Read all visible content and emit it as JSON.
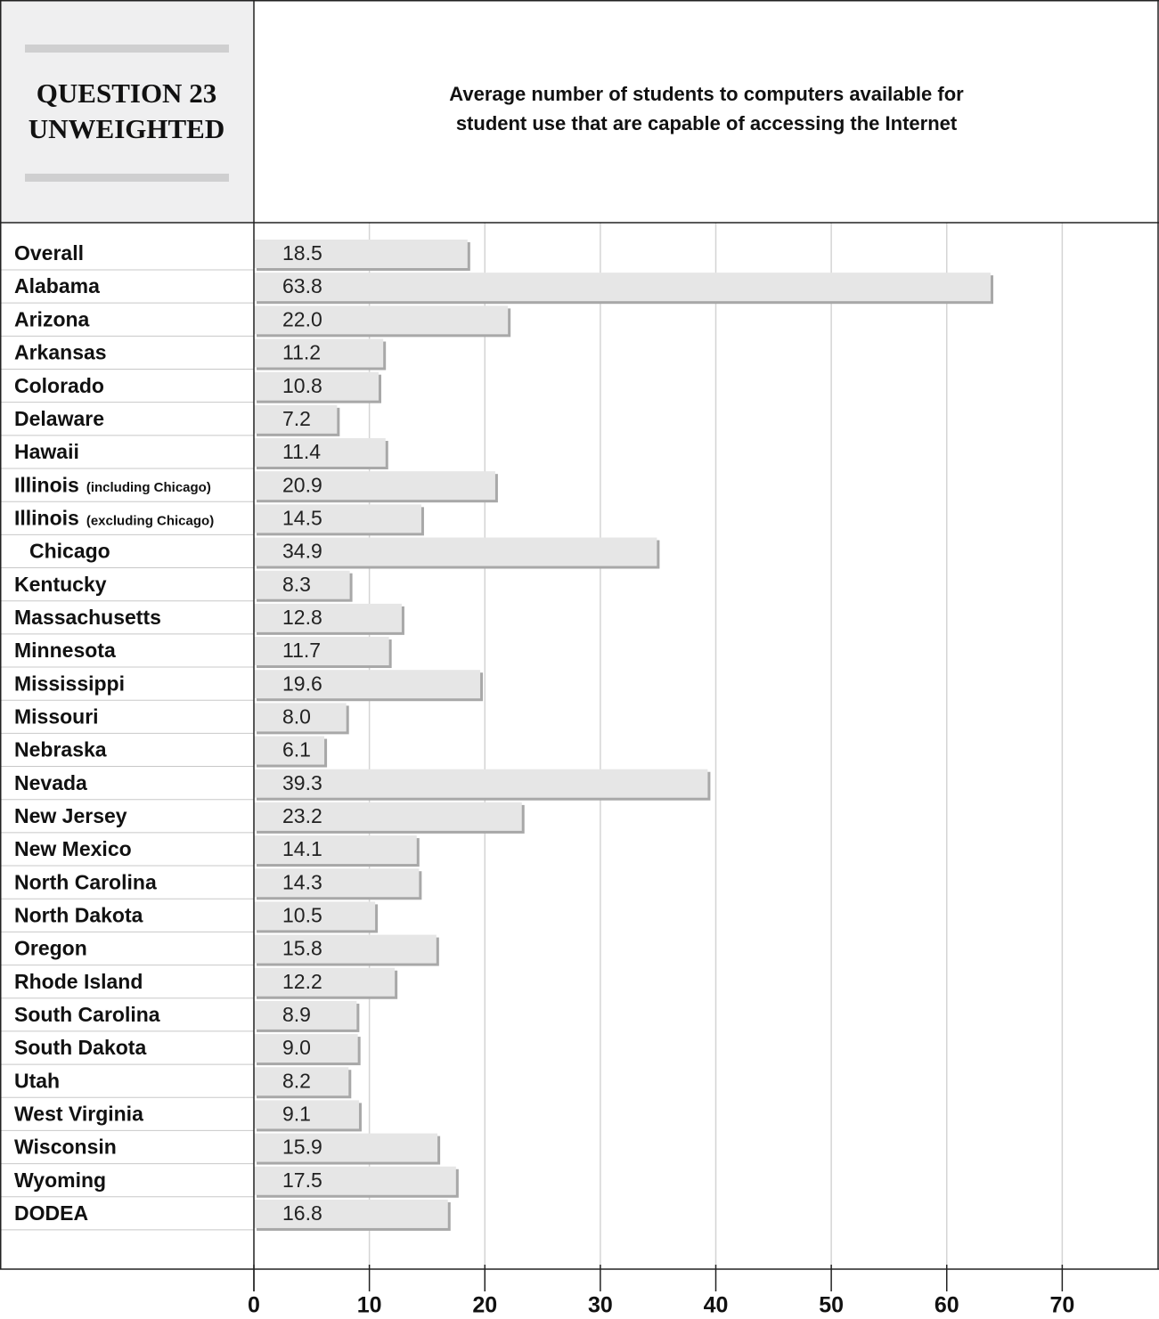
{
  "chart_data": {
    "type": "bar",
    "panel_label": [
      "QUESTION 23",
      "UNWEIGHTED"
    ],
    "title": [
      "Average number of students to computers available for",
      "student use that are capable of accessing the Internet"
    ],
    "categories": [
      "Overall",
      "Alabama",
      "Arizona",
      "Arkansas",
      "Colorado",
      "Delaware",
      "Hawaii",
      "Illinois",
      "Illinois",
      "Chicago",
      "Kentucky",
      "Massachusetts",
      "Minnesota",
      "Mississippi",
      "Missouri",
      "Nebraska",
      "Nevada",
      "New Jersey",
      "New Mexico",
      "North Carolina",
      "North Dakota",
      "Oregon",
      "Rhode Island",
      "South Carolina",
      "South Dakota",
      "Utah",
      "West Virginia",
      "Wisconsin",
      "Wyoming",
      "DODEA"
    ],
    "category_notes": [
      null,
      null,
      null,
      null,
      null,
      null,
      null,
      "(including Chicago)",
      "(excluding Chicago)",
      null,
      null,
      null,
      null,
      null,
      null,
      null,
      null,
      null,
      null,
      null,
      null,
      null,
      null,
      null,
      null,
      null,
      null,
      null,
      null,
      null
    ],
    "values": [
      18.5,
      63.8,
      22,
      11.2,
      10.8,
      7.2,
      11.4,
      20.9,
      14.5,
      34.9,
      8.3,
      12.8,
      11.7,
      19.6,
      8,
      6.1,
      39.3,
      23.2,
      14.1,
      14.3,
      10.5,
      15.8,
      12.2,
      8.9,
      9,
      8.2,
      9.1,
      15.9,
      17.5,
      16.8
    ],
    "value_labels": [
      "18.5",
      "63.8",
      "22.0",
      "11.2",
      "10.8",
      "7.2",
      "11.4",
      "20.9",
      "14.5",
      "34.9",
      "8.3",
      "12.8",
      "11.7",
      "19.6",
      "8.0",
      "6.1",
      "39.3",
      "23.2",
      "14.1",
      "14.3",
      "10.5",
      "15.8",
      "12.2",
      "8.9",
      "9.0",
      "8.2",
      "9.1",
      "15.9",
      "17.5",
      "16.8"
    ],
    "color": "#e6e6e6",
    "xlim": [
      0,
      80
    ],
    "xticks": [
      0,
      10,
      20,
      30,
      40,
      50,
      60,
      70,
      80
    ],
    "grid": true
  }
}
